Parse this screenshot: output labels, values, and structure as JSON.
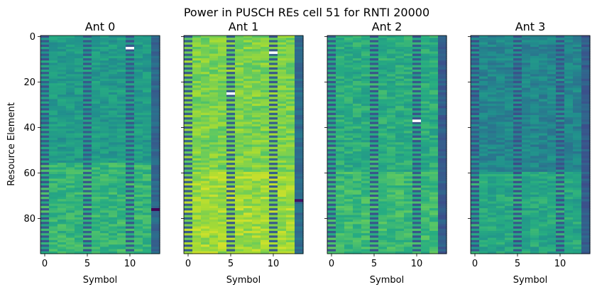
{
  "chart_data": {
    "type": "heatmap",
    "title": "Power in PUSCH REs cell 51 for RNTI 20000",
    "ylabel": "Resource Element",
    "xlabel": "Symbol",
    "colormap": "viridis",
    "n_symbols": 14,
    "n_resource_elements": 96,
    "xlim": [
      -0.5,
      13.5
    ],
    "ylim": [
      95.5,
      -0.5
    ],
    "x_ticks": [
      0,
      5,
      10
    ],
    "y_ticks": [
      0,
      20,
      40,
      60,
      80
    ],
    "dmrs_symbols": [
      0,
      5,
      10
    ],
    "last_symbol": 13,
    "panels": [
      {
        "name": "Ant 0",
        "base_level": 0.55,
        "lower_level": 0.66,
        "lower_start_re": 56,
        "last_symbol_level": 0.34,
        "dmrs_low_level": 0.28,
        "blank_cells": [
          {
            "symbol": 10,
            "re": 5
          }
        ],
        "last_symbol_marks": [
          {
            "re": 76,
            "level": 0.0
          }
        ]
      },
      {
        "name": "Ant 1",
        "base_level": 0.8,
        "lower_level": 0.86,
        "lower_start_re": 60,
        "last_symbol_level": 0.36,
        "dmrs_low_level": 0.3,
        "blank_cells": [
          {
            "symbol": 10,
            "re": 7
          },
          {
            "symbol": 5,
            "re": 25
          }
        ],
        "last_symbol_marks": [
          {
            "re": 72,
            "level": 0.05
          }
        ]
      },
      {
        "name": "Ant 2",
        "base_level": 0.62,
        "lower_level": 0.68,
        "lower_start_re": 60,
        "last_symbol_level": 0.3,
        "dmrs_low_level": 0.28,
        "blank_cells": [
          {
            "symbol": 10,
            "re": 37
          }
        ],
        "last_symbol_marks": []
      },
      {
        "name": "Ant 3",
        "base_level": 0.46,
        "lower_level": 0.6,
        "lower_start_re": 60,
        "last_symbol_level": 0.3,
        "dmrs_low_level": 0.26,
        "blank_cells": [],
        "last_symbol_marks": []
      }
    ]
  }
}
